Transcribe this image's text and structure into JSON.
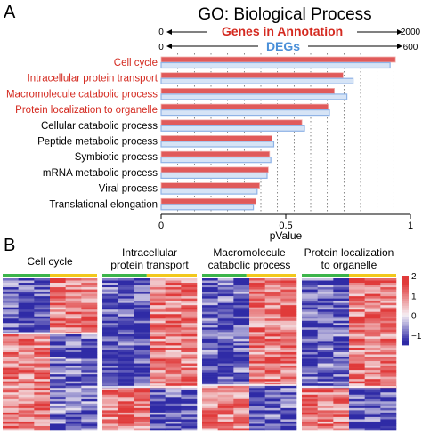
{
  "panel_labels": {
    "a": "A",
    "b": "B"
  },
  "colors": {
    "genes_bar": "#e05a5a",
    "genes_bar_light": "#f2b3b0",
    "degs_bar": "#8fb3e6",
    "degs_bar_light": "#d6e4f6",
    "red_label": "#d42a20",
    "blue_label": "#4a8fd8",
    "group_green": "#3cb44b",
    "group_yellow": "#f2c81c",
    "heat_low": "#2f2ba6",
    "heat_mid": "#f6f0f4",
    "heat_high": "#e03a3a"
  },
  "chart_data": [
    {
      "type": "bar",
      "orientation": "horizontal",
      "title": "GO: Biological Process",
      "categories": [
        "Cell cycle",
        "Intracellular protein transport",
        "Macromolecule catabolic process",
        "Protein localization to organelle",
        "Cellular catabolic process",
        "Peptide metabolic process",
        "Symbiotic process",
        "mRNA metabolic process",
        "Viral process",
        "Translational elongation"
      ],
      "highlighted_categories": [
        "Cell cycle",
        "Intracellular protein transport",
        "Macromolecule catabolic process",
        "Protein localization to organelle"
      ],
      "series": [
        {
          "name": "Genes in Annotation",
          "axis": "top_outer",
          "axis_range": [
            0,
            2000
          ],
          "axis_ticks": [
            "0",
            "2000"
          ],
          "values": [
            1880,
            1460,
            1390,
            1340,
            1130,
            890,
            870,
            860,
            790,
            760
          ]
        },
        {
          "name": "DEGs",
          "axis": "top_inner",
          "axis_range": [
            0,
            600
          ],
          "axis_ticks": [
            "0",
            "600"
          ],
          "values": [
            551,
            462,
            447,
            405,
            345,
            271,
            264,
            255,
            231,
            222
          ]
        }
      ],
      "bottom_axis": {
        "label": "pValue",
        "range": [
          0,
          1
        ],
        "ticks": [
          "0",
          "0.5",
          "1"
        ]
      },
      "dotted_gridlines": true
    },
    {
      "type": "heatmap",
      "panels": [
        {
          "title_lines": [
            "Cell cycle"
          ],
          "group_split_fraction": 0.5
        },
        {
          "title_lines": [
            "Intracellular",
            "protein transport"
          ],
          "group_split_fraction": 0.47
        },
        {
          "title_lines": [
            "Macromolecule",
            "catabolic process"
          ],
          "group_split_fraction": 0.47
        },
        {
          "title_lines": [
            "Protein localization",
            "to organelle"
          ],
          "group_split_fraction": 0.5
        }
      ],
      "columns_per_panel": 6,
      "groups": [
        "green",
        "yellow"
      ],
      "colorbar": {
        "ticks": [
          "2",
          "1",
          "0",
          "−1"
        ],
        "range": [
          -1.5,
          2
        ]
      }
    }
  ]
}
